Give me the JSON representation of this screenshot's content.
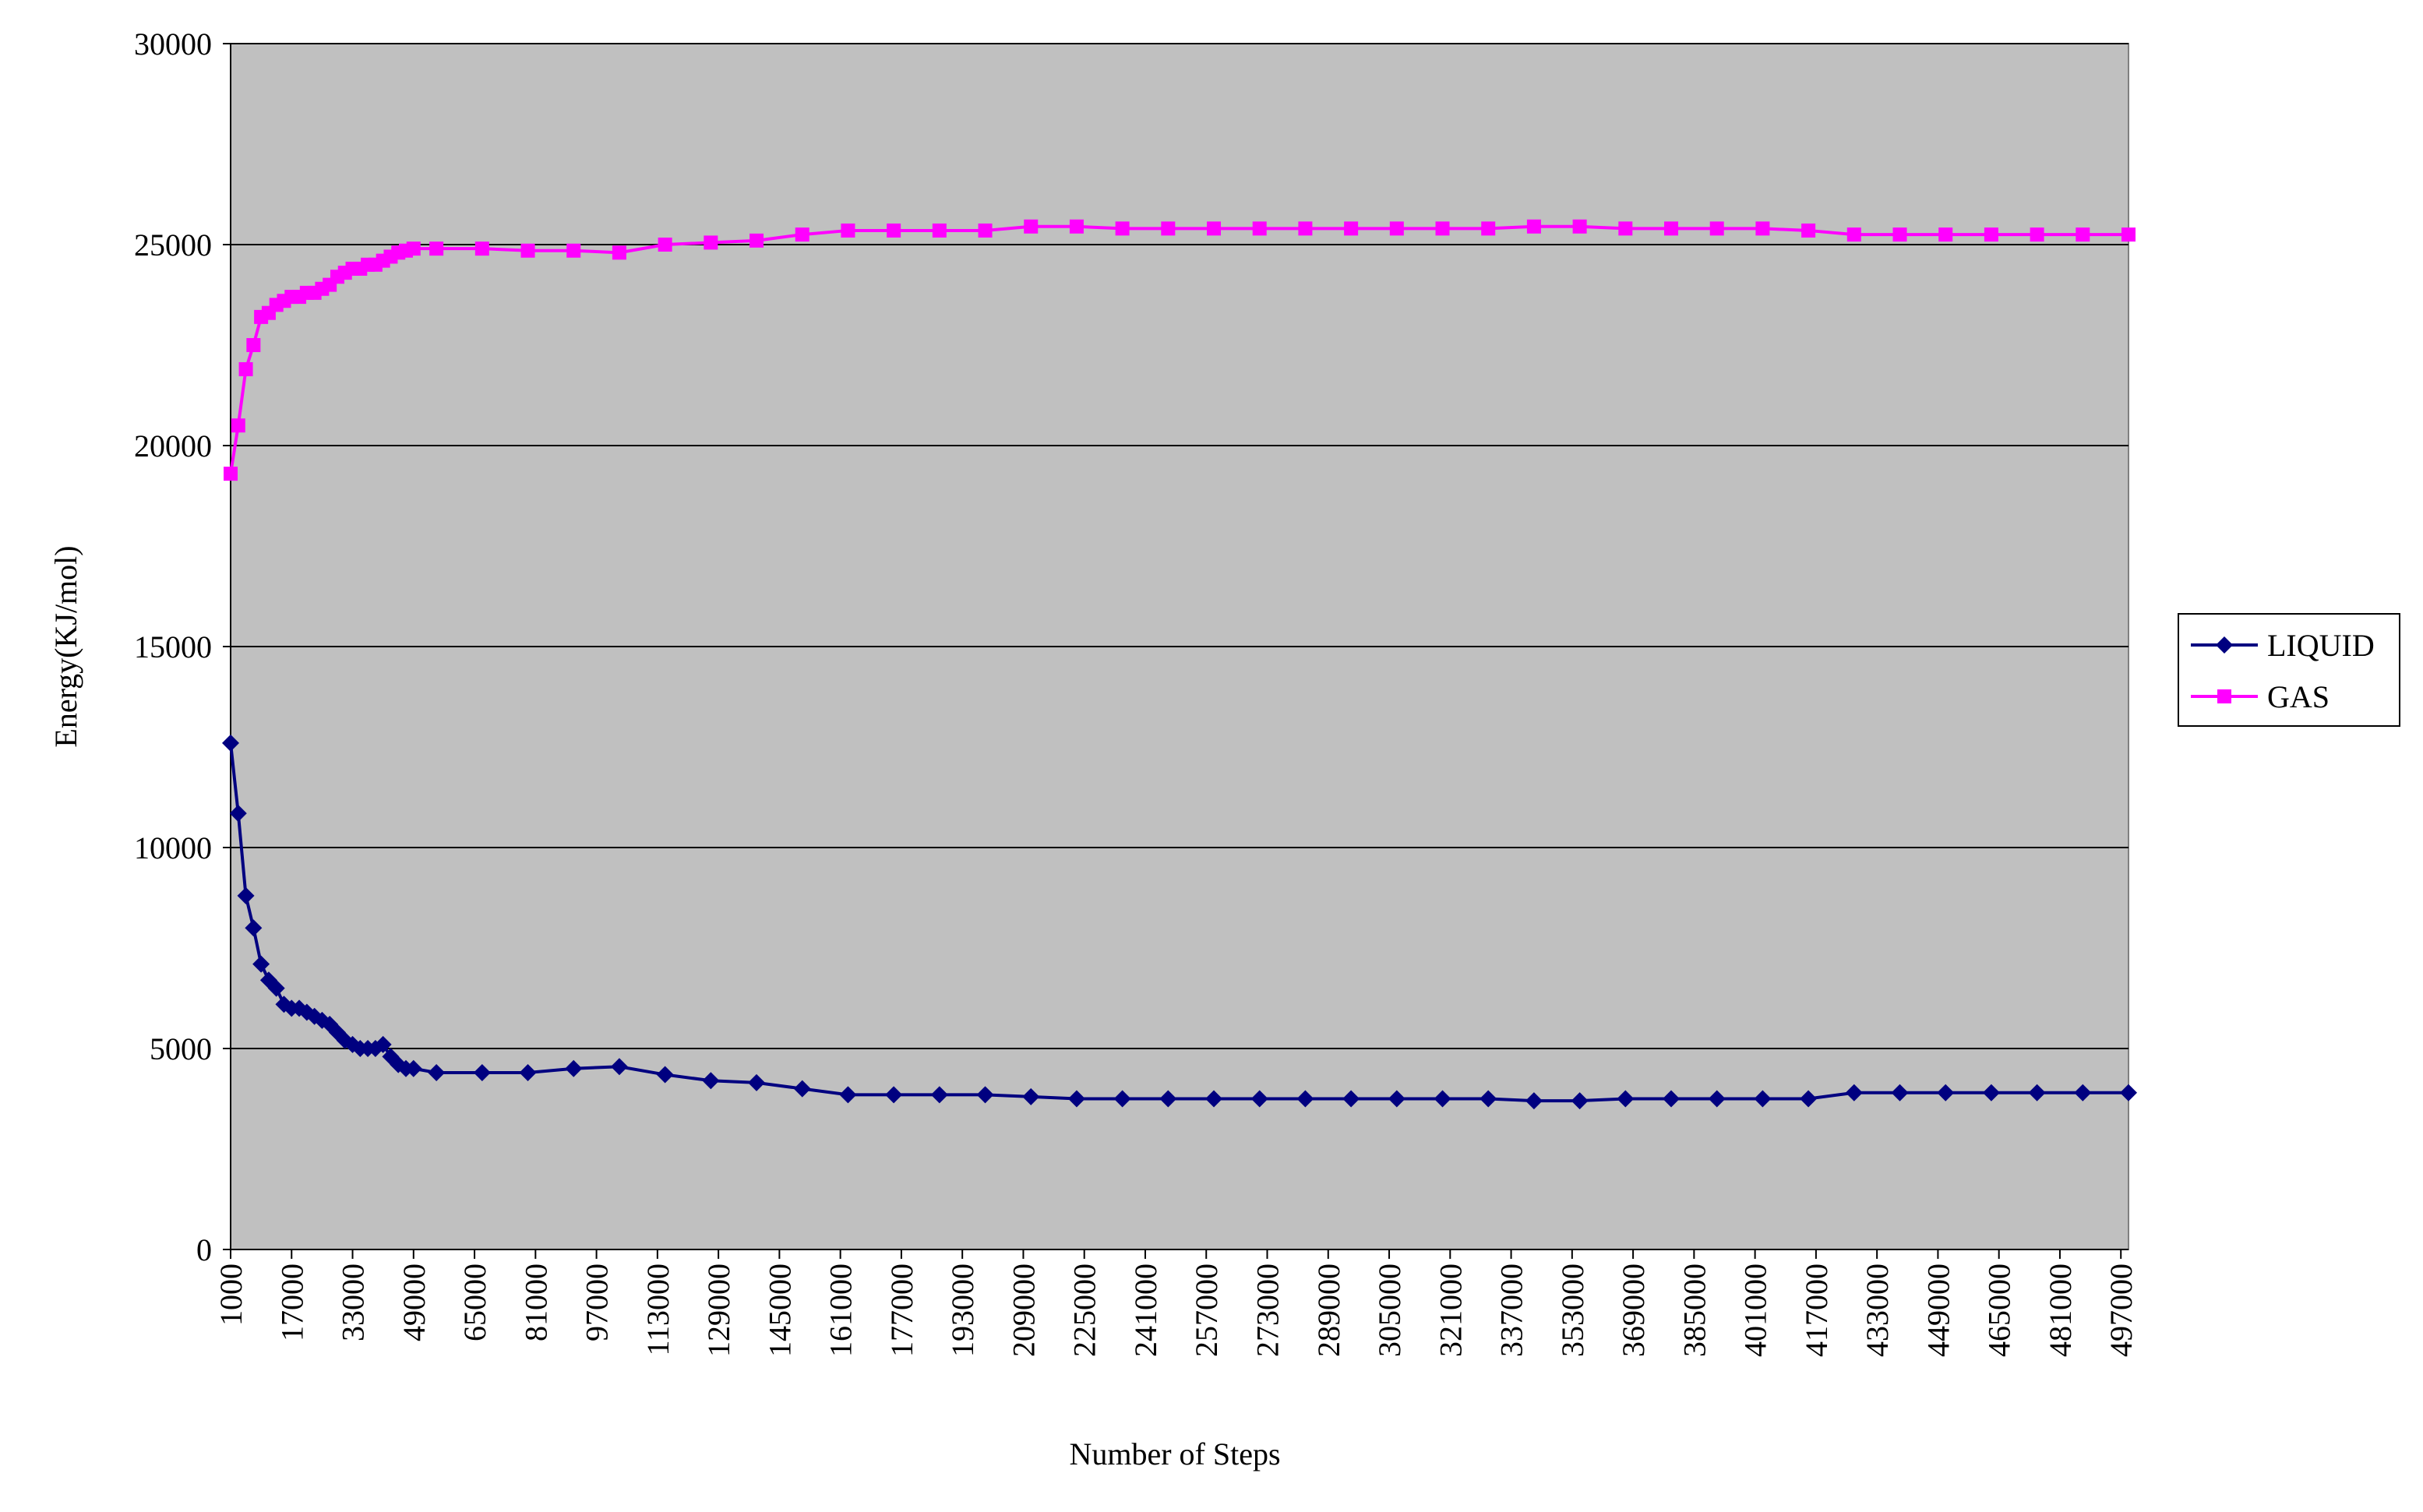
{
  "chart_data": {
    "type": "line",
    "x_label": "Number of Steps",
    "y_label": "Energy(KJ/mol)",
    "x": [
      1000,
      3000,
      5000,
      7000,
      9000,
      11000,
      13000,
      15000,
      17000,
      19000,
      21000,
      23000,
      25000,
      27000,
      29000,
      31000,
      33000,
      35000,
      37000,
      39000,
      41000,
      43000,
      45000,
      47000,
      49000,
      55000,
      67000,
      79000,
      91000,
      103000,
      115000,
      127000,
      139000,
      151000,
      163000,
      175000,
      187000,
      199000,
      211000,
      223000,
      235000,
      247000,
      259000,
      271000,
      283000,
      295000,
      307000,
      319000,
      331000,
      343000,
      355000,
      367000,
      379000,
      391000,
      403000,
      415000,
      427000,
      439000,
      451000,
      463000,
      475000,
      487000,
      499000
    ],
    "series": [
      {
        "name": "LIQUID",
        "color": "#000080",
        "marker": "diamond",
        "values": [
          12600,
          10850,
          8800,
          8000,
          7100,
          6700,
          6500,
          6100,
          6000,
          6000,
          5900,
          5800,
          5700,
          5600,
          5400,
          5200,
          5100,
          5000,
          5000,
          5000,
          5100,
          4800,
          4600,
          4500,
          4500,
          4400,
          4400,
          4400,
          4500,
          4550,
          4350,
          4200,
          4150,
          4000,
          3850,
          3850,
          3850,
          3850,
          3800,
          3750,
          3750,
          3750,
          3750,
          3750,
          3750,
          3750,
          3750,
          3750,
          3750,
          3700,
          3700,
          3750,
          3750,
          3750,
          3750,
          3750,
          3900,
          3900,
          3900,
          3900,
          3900,
          3900,
          3900
        ]
      },
      {
        "name": "GAS",
        "color": "#ff00ff",
        "marker": "square",
        "values": [
          19300,
          20500,
          21900,
          22500,
          23200,
          23300,
          23500,
          23600,
          23700,
          23700,
          23800,
          23800,
          23900,
          24000,
          24200,
          24300,
          24400,
          24400,
          24500,
          24500,
          24600,
          24700,
          24800,
          24850,
          24900,
          24900,
          24900,
          24850,
          24850,
          24800,
          25000,
          25050,
          25100,
          25250,
          25350,
          25350,
          25350,
          25350,
          25450,
          25450,
          25400,
          25400,
          25400,
          25400,
          25400,
          25400,
          25400,
          25400,
          25400,
          25450,
          25450,
          25400,
          25400,
          25400,
          25400,
          25350,
          25250,
          25250,
          25250,
          25250,
          25250,
          25250,
          25250
        ]
      }
    ],
    "xlim": [
      1000,
      499000
    ],
    "xticks": [
      1000,
      17000,
      33000,
      49000,
      65000,
      81000,
      97000,
      113000,
      129000,
      145000,
      161000,
      177000,
      193000,
      209000,
      225000,
      241000,
      257000,
      273000,
      289000,
      305000,
      321000,
      337000,
      353000,
      369000,
      385000,
      401000,
      417000,
      433000,
      449000,
      465000,
      481000,
      497000
    ],
    "ylim": [
      0,
      30000
    ],
    "yticks": [
      0,
      5000,
      10000,
      15000,
      20000,
      25000,
      30000
    ],
    "grid": true,
    "plot_background": "#c0c0c0",
    "legend": "right"
  }
}
